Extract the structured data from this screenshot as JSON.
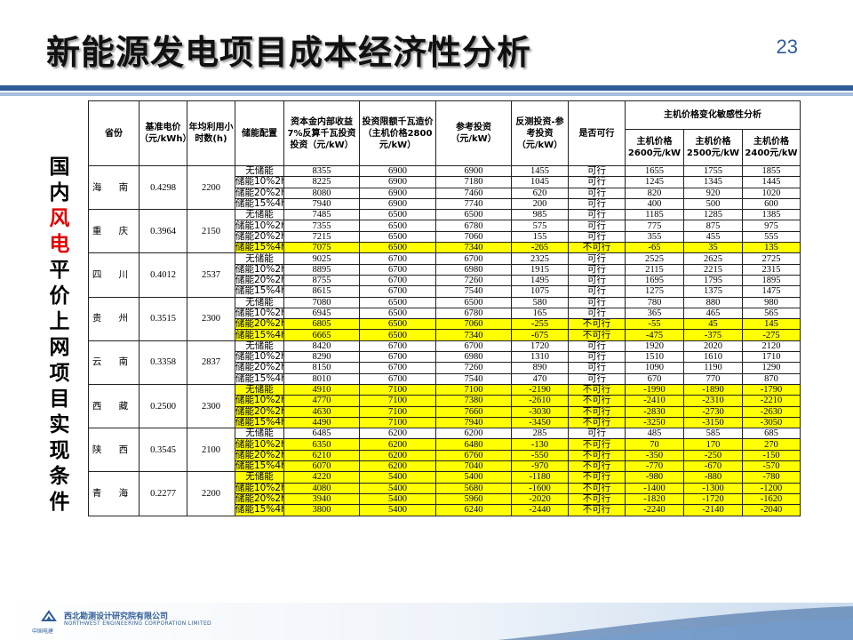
{
  "title": "新能源发电项目成本经济性分析",
  "page_number": "23",
  "side_title": [
    {
      "t": "国",
      "red": false
    },
    {
      "t": "内",
      "red": false
    },
    {
      "t": "风",
      "red": true
    },
    {
      "t": "电",
      "red": true
    },
    {
      "t": "平",
      "red": false
    },
    {
      "t": "价",
      "red": false
    },
    {
      "t": "上",
      "red": false
    },
    {
      "t": "网",
      "red": false
    },
    {
      "t": "项",
      "red": false
    },
    {
      "t": "目",
      "red": false
    },
    {
      "t": "实",
      "red": false
    },
    {
      "t": "现",
      "red": false
    },
    {
      "t": "条",
      "red": false
    },
    {
      "t": "件",
      "red": false
    }
  ],
  "headers": {
    "province": "省份",
    "price": "基准电价（元/kWh）",
    "hours": "年均利用小时数(h)",
    "storage": "储能配置",
    "invest_irr": "资本金内部收益7%反算千瓦投资投资（元/kW）",
    "invest_limit": "投资限额千瓦造价（主机价格2800元/kW）",
    "ref_invest": "参考投资（元/kW）",
    "diff": "反测投资-参考投资（元/kW）",
    "feasible": "是否可行",
    "sens_group": "主机价格变化敏感性分析",
    "sens": [
      "主机价格2600元/kW",
      "主机价格2500元/kW",
      "主机价格2400元/kW"
    ]
  },
  "provinces": [
    {
      "name": "海 南",
      "price": "0.4298",
      "hours": "2200",
      "rows": [
        {
          "s": "无储能",
          "a": "8355",
          "b": "6900",
          "c": "6900",
          "d": "1455",
          "e": "可行",
          "f": "1655",
          "g": "1755",
          "h": "1855",
          "hl": false
        },
        {
          "s": "储能10%2h",
          "a": "8225",
          "b": "6900",
          "c": "7180",
          "d": "1045",
          "e": "可行",
          "f": "1245",
          "g": "1345",
          "h": "1445",
          "hl": false
        },
        {
          "s": "储能20%2h",
          "a": "8080",
          "b": "6900",
          "c": "7460",
          "d": "620",
          "e": "可行",
          "f": "820",
          "g": "920",
          "h": "1020",
          "hl": false
        },
        {
          "s": "储能15%4h",
          "a": "7940",
          "b": "6900",
          "c": "7740",
          "d": "200",
          "e": "可行",
          "f": "400",
          "g": "500",
          "h": "600",
          "hl": false
        }
      ]
    },
    {
      "name": "重 庆",
      "price": "0.3964",
      "hours": "2150",
      "rows": [
        {
          "s": "无储能",
          "a": "7485",
          "b": "6500",
          "c": "6500",
          "d": "985",
          "e": "可行",
          "f": "1185",
          "g": "1285",
          "h": "1385",
          "hl": false
        },
        {
          "s": "储能10%2h",
          "a": "7355",
          "b": "6500",
          "c": "6780",
          "d": "575",
          "e": "可行",
          "f": "775",
          "g": "875",
          "h": "975",
          "hl": false
        },
        {
          "s": "储能20%2h",
          "a": "7215",
          "b": "6500",
          "c": "7060",
          "d": "155",
          "e": "可行",
          "f": "355",
          "g": "455",
          "h": "555",
          "hl": false
        },
        {
          "s": "储能15%4h",
          "a": "7075",
          "b": "6500",
          "c": "7340",
          "d": "-265",
          "e": "不可行",
          "f": "-65",
          "g": "35",
          "h": "135",
          "hl": true
        }
      ]
    },
    {
      "name": "四 川",
      "price": "0.4012",
      "hours": "2537",
      "rows": [
        {
          "s": "无储能",
          "a": "9025",
          "b": "6700",
          "c": "6700",
          "d": "2325",
          "e": "可行",
          "f": "2525",
          "g": "2625",
          "h": "2725",
          "hl": false
        },
        {
          "s": "储能10%2h",
          "a": "8895",
          "b": "6700",
          "c": "6980",
          "d": "1915",
          "e": "可行",
          "f": "2115",
          "g": "2215",
          "h": "2315",
          "hl": false
        },
        {
          "s": "储能20%2h",
          "a": "8755",
          "b": "6700",
          "c": "7260",
          "d": "1495",
          "e": "可行",
          "f": "1695",
          "g": "1795",
          "h": "1895",
          "hl": false
        },
        {
          "s": "储能15%4h",
          "a": "8615",
          "b": "6700",
          "c": "7540",
          "d": "1075",
          "e": "可行",
          "f": "1275",
          "g": "1375",
          "h": "1475",
          "hl": false
        }
      ]
    },
    {
      "name": "贵 州",
      "price": "0.3515",
      "hours": "2300",
      "rows": [
        {
          "s": "无储能",
          "a": "7080",
          "b": "6500",
          "c": "6500",
          "d": "580",
          "e": "可行",
          "f": "780",
          "g": "880",
          "h": "980",
          "hl": false
        },
        {
          "s": "储能10%2h",
          "a": "6945",
          "b": "6500",
          "c": "6780",
          "d": "165",
          "e": "可行",
          "f": "365",
          "g": "465",
          "h": "565",
          "hl": false
        },
        {
          "s": "储能20%2h",
          "a": "6805",
          "b": "6500",
          "c": "7060",
          "d": "-255",
          "e": "不可行",
          "f": "-55",
          "g": "45",
          "h": "145",
          "hl": true
        },
        {
          "s": "储能15%4h",
          "a": "6665",
          "b": "6500",
          "c": "7340",
          "d": "-675",
          "e": "不可行",
          "f": "-475",
          "g": "-375",
          "h": "-275",
          "hl": true
        }
      ]
    },
    {
      "name": "云 南",
      "price": "0.3358",
      "hours": "2837",
      "rows": [
        {
          "s": "无储能",
          "a": "8420",
          "b": "6700",
          "c": "6700",
          "d": "1720",
          "e": "可行",
          "f": "1920",
          "g": "2020",
          "h": "2120",
          "hl": false
        },
        {
          "s": "储能10%2h",
          "a": "8290",
          "b": "6700",
          "c": "6980",
          "d": "1310",
          "e": "可行",
          "f": "1510",
          "g": "1610",
          "h": "1710",
          "hl": false
        },
        {
          "s": "储能20%2h",
          "a": "8150",
          "b": "6700",
          "c": "7260",
          "d": "890",
          "e": "可行",
          "f": "1090",
          "g": "1190",
          "h": "1290",
          "hl": false
        },
        {
          "s": "储能15%4h",
          "a": "8010",
          "b": "6700",
          "c": "7540",
          "d": "470",
          "e": "可行",
          "f": "670",
          "g": "770",
          "h": "870",
          "hl": false
        }
      ]
    },
    {
      "name": "西 藏",
      "price": "0.2500",
      "hours": "2300",
      "rows": [
        {
          "s": "无储能",
          "a": "4910",
          "b": "7100",
          "c": "7100",
          "d": "-2190",
          "e": "不可行",
          "f": "-1990",
          "g": "-1890",
          "h": "-1790",
          "hl": true
        },
        {
          "s": "储能10%2h",
          "a": "4770",
          "b": "7100",
          "c": "7380",
          "d": "-2610",
          "e": "不可行",
          "f": "-2410",
          "g": "-2310",
          "h": "-2210",
          "hl": true
        },
        {
          "s": "储能20%2h",
          "a": "4630",
          "b": "7100",
          "c": "7660",
          "d": "-3030",
          "e": "不可行",
          "f": "-2830",
          "g": "-2730",
          "h": "-2630",
          "hl": true
        },
        {
          "s": "储能15%4h",
          "a": "4490",
          "b": "7100",
          "c": "7940",
          "d": "-3450",
          "e": "不可行",
          "f": "-3250",
          "g": "-3150",
          "h": "-3050",
          "hl": true
        }
      ]
    },
    {
      "name": "陕 西",
      "price": "0.3545",
      "hours": "2100",
      "rows": [
        {
          "s": "无储能",
          "a": "6485",
          "b": "6200",
          "c": "6200",
          "d": "285",
          "e": "可行",
          "f": "485",
          "g": "585",
          "h": "685",
          "hl": false
        },
        {
          "s": "储能10%2h",
          "a": "6350",
          "b": "6200",
          "c": "6480",
          "d": "-130",
          "e": "不可行",
          "f": "70",
          "g": "170",
          "h": "270",
          "hl": true
        },
        {
          "s": "储能20%2h",
          "a": "6210",
          "b": "6200",
          "c": "6760",
          "d": "-550",
          "e": "不可行",
          "f": "-350",
          "g": "-250",
          "h": "-150",
          "hl": true
        },
        {
          "s": "储能15%4h",
          "a": "6070",
          "b": "6200",
          "c": "7040",
          "d": "-970",
          "e": "不可行",
          "f": "-770",
          "g": "-670",
          "h": "-570",
          "hl": true
        }
      ]
    },
    {
      "name": "青 海",
      "price": "0.2277",
      "hours": "2200",
      "rows": [
        {
          "s": "无储能",
          "a": "4220",
          "b": "5400",
          "c": "5400",
          "d": "-1180",
          "e": "不可行",
          "f": "-980",
          "g": "-880",
          "h": "-780",
          "hl": true
        },
        {
          "s": "储能10%2h",
          "a": "4080",
          "b": "5400",
          "c": "5680",
          "d": "-1600",
          "e": "不可行",
          "f": "-1400",
          "g": "-1300",
          "h": "-1200",
          "hl": true
        },
        {
          "s": "储能20%2h",
          "a": "3940",
          "b": "5400",
          "c": "5960",
          "d": "-2020",
          "e": "不可行",
          "f": "-1820",
          "g": "-1720",
          "h": "-1620",
          "hl": true
        },
        {
          "s": "储能15%4h",
          "a": "3800",
          "b": "5400",
          "c": "6240",
          "d": "-2440",
          "e": "不可行",
          "f": "-2240",
          "g": "-2140",
          "h": "-2040",
          "hl": true
        }
      ]
    }
  ],
  "footer": {
    "brand_small": "中国电建",
    "company_cn": "西北勘测设计研究院有限公司",
    "company_en": "NORTHWEST ENGINEERING CORPORATION LIMITED"
  },
  "colors": {
    "highlight": "#ffff00",
    "accent": "#2f5d99",
    "red": "#e00000"
  }
}
